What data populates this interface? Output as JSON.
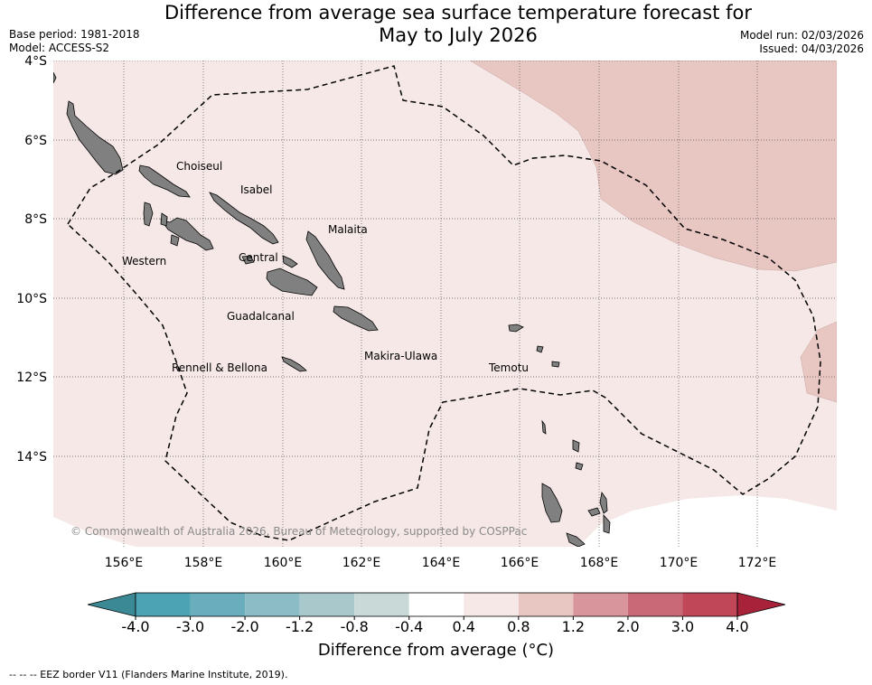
{
  "header": {
    "title_line1": "Difference from average sea surface temperature forecast for",
    "title_line2": "May to July 2026",
    "base_period": "Base period: 1981-2018",
    "model": "Model: ACCESS-S2",
    "model_run": "Model run: 02/03/2026",
    "issued": "Issued: 04/03/2026"
  },
  "map": {
    "lat_labels": [
      "4°S",
      "6°S",
      "8°S",
      "10°S",
      "12°S",
      "14°S"
    ],
    "lon_labels": [
      "156°E",
      "158°E",
      "160°E",
      "162°E",
      "164°E",
      "166°E",
      "168°E",
      "170°E",
      "172°E"
    ],
    "province_labels": [
      "Choiseul",
      "Isabel",
      "Malaita",
      "Western",
      "Central",
      "Guadalcanal",
      "Makira-Ulawa",
      "Rennell & Bellona",
      "Temotu"
    ],
    "copyright": "© Commonwealth of Australia 2026, Bureau of Meteorology, supported by COSPPac",
    "colors": {
      "background_anomaly": "#f5e8e7",
      "warm_anomaly": "#e8c7c3",
      "land": "#808080",
      "eez_line": "#000000"
    }
  },
  "colorbar": {
    "label": "Difference from average (°C)",
    "ticks": [
      "-4.0",
      "-3.0",
      "-2.0",
      "-1.2",
      "-0.8",
      "-0.4",
      "0.4",
      "0.8",
      "1.2",
      "2.0",
      "3.0",
      "4.0"
    ],
    "colors": [
      "#3b8994",
      "#4ba3b3",
      "#6aaebd",
      "#8cbcc5",
      "#a9c8cb",
      "#c9d9d8",
      "#ffffff",
      "#f5e8e7",
      "#e8c7c3",
      "#d8969c",
      "#c96876",
      "#bf4757",
      "#a8223a"
    ]
  },
  "footer": {
    "legend_text": "--  --  -- EEZ border V11 (Flanders Marine Institute, 2019)."
  }
}
